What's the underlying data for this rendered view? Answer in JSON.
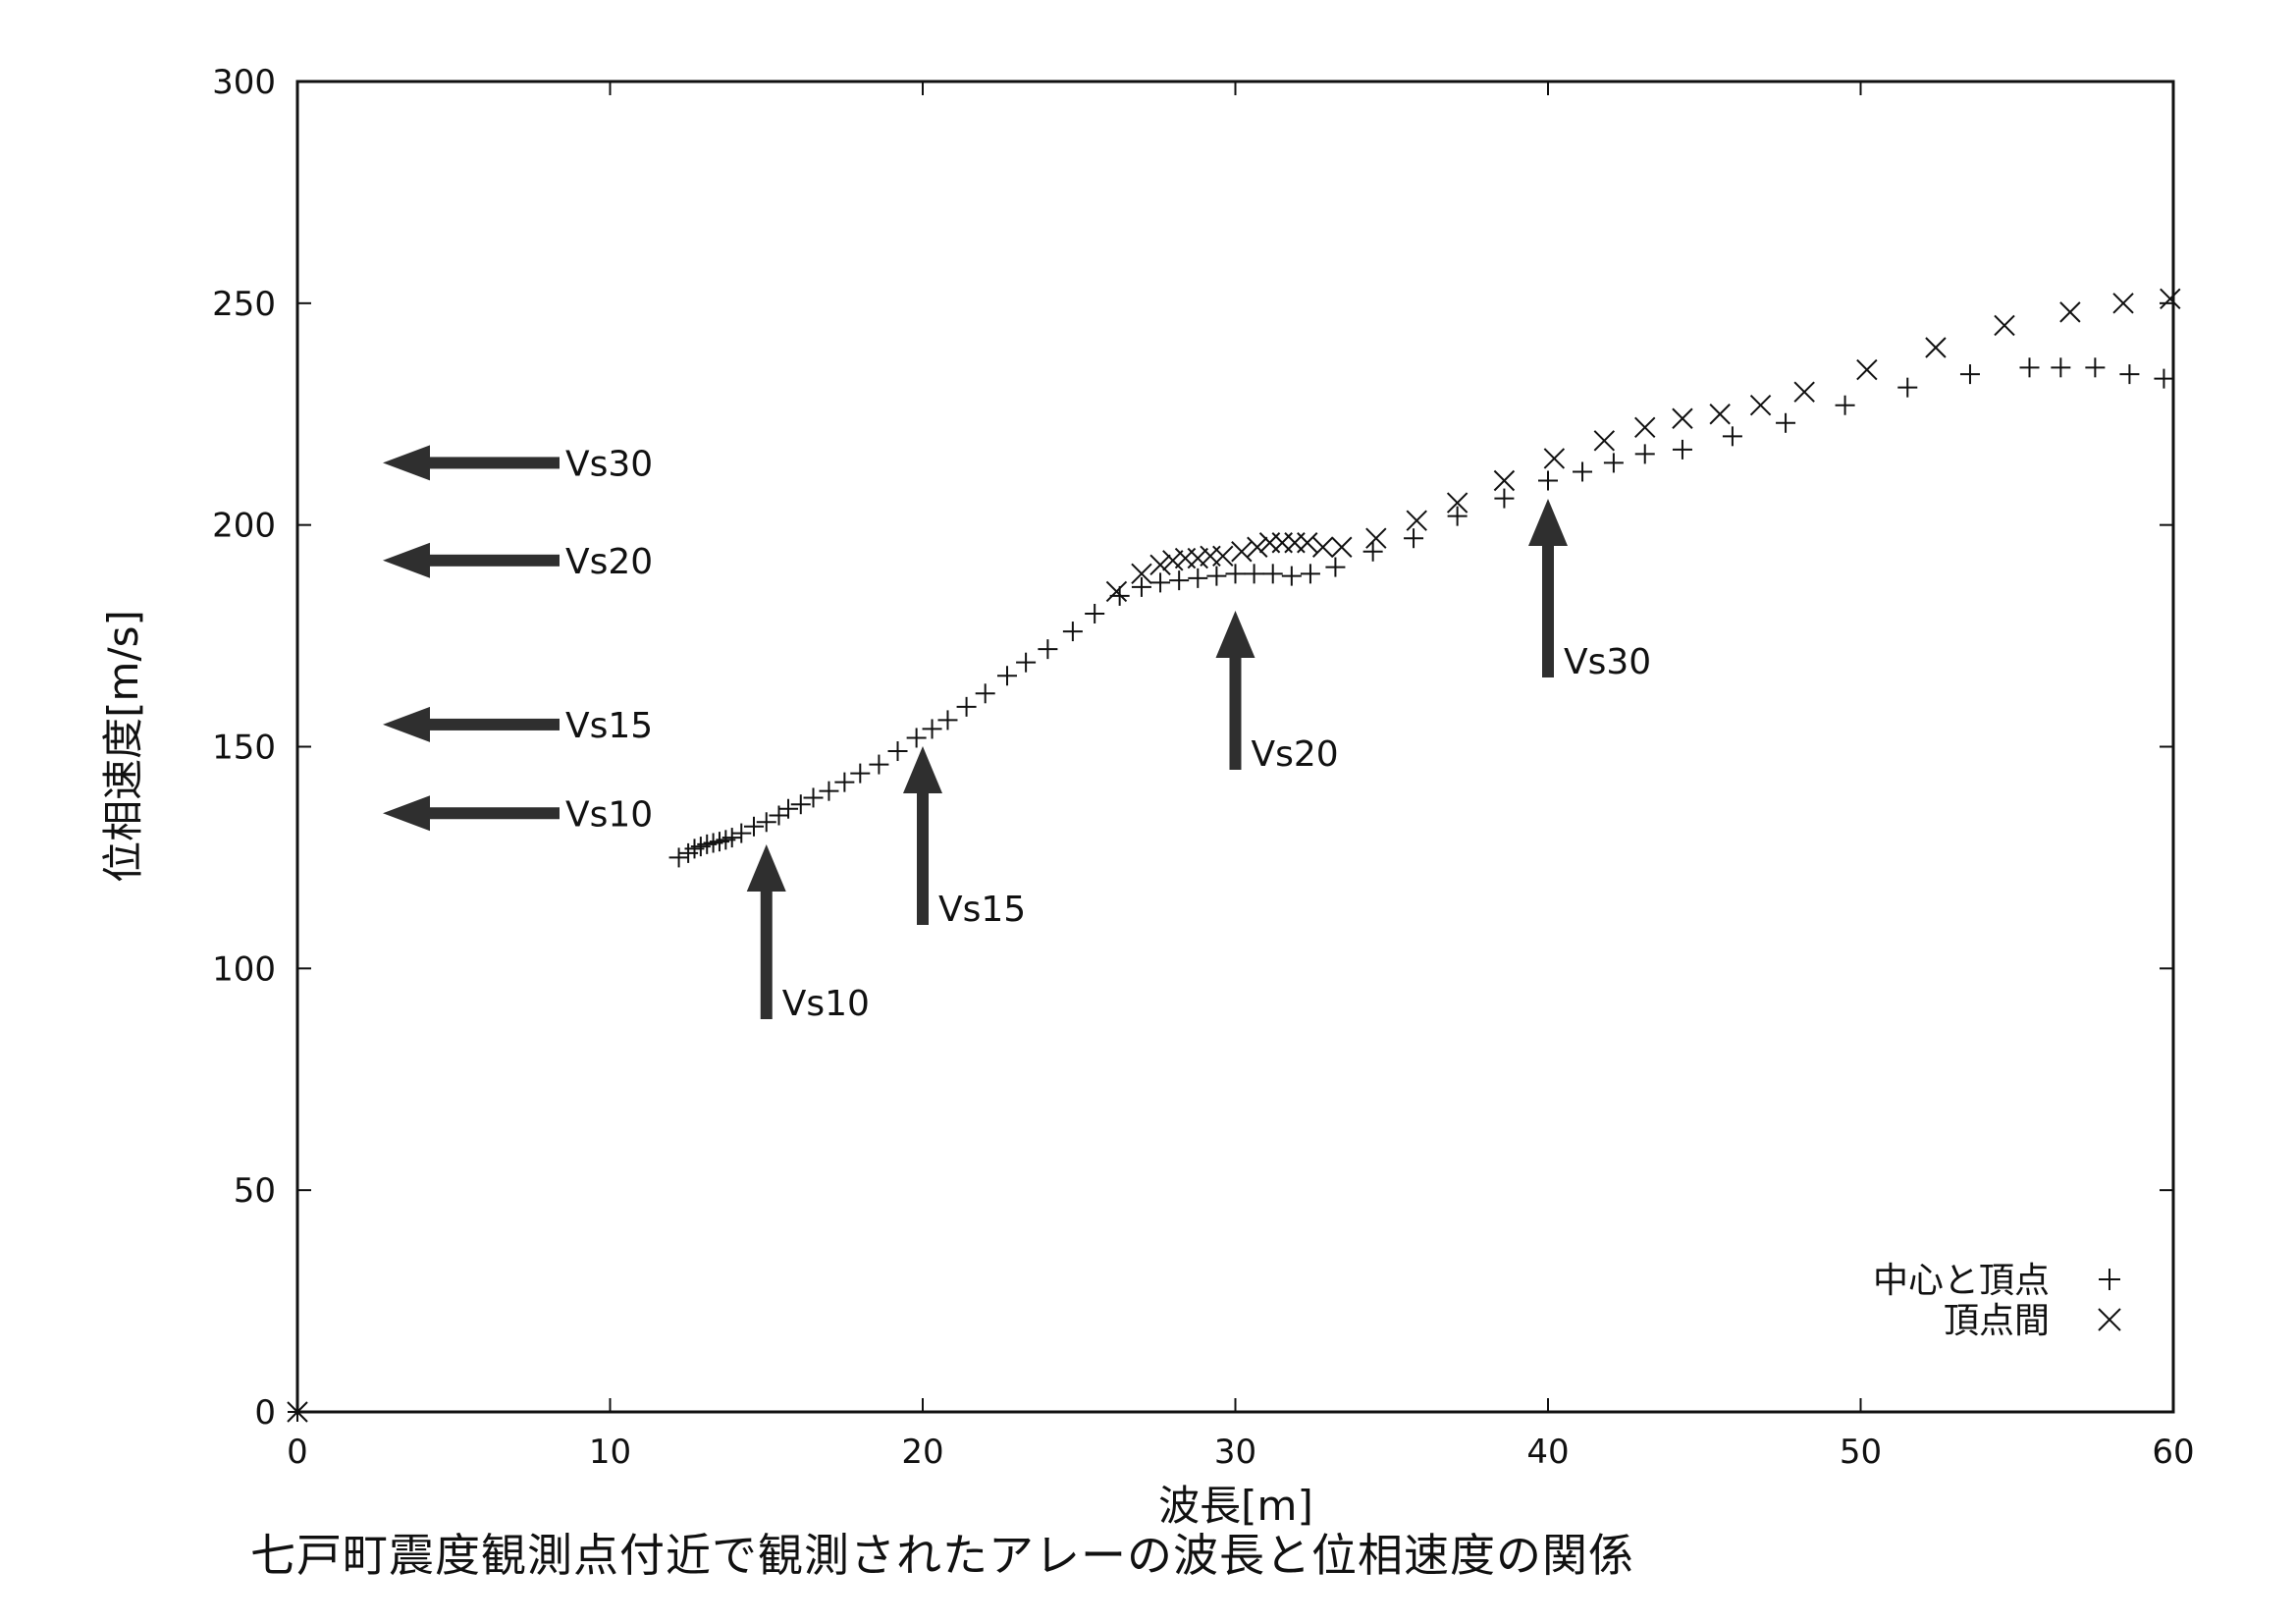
{
  "caption": "七戸町震度観測点付近で観測されたアレーの波長と位相速度の関係",
  "chart_data": {
    "type": "scatter",
    "xlabel": "波長[m]",
    "ylabel": "位相速度[m/s]",
    "xlim": [
      0,
      60
    ],
    "ylim": [
      0,
      300
    ],
    "xticks": [
      0,
      10,
      20,
      30,
      40,
      50,
      60
    ],
    "yticks": [
      0,
      50,
      100,
      150,
      200,
      250,
      300
    ],
    "grid": false,
    "legend_position": "bottom-right",
    "series": [
      {
        "name": "中心と頂点",
        "marker": "+",
        "points": [
          [
            0,
            0
          ],
          [
            12.2,
            125
          ],
          [
            12.5,
            126
          ],
          [
            12.7,
            127
          ],
          [
            12.9,
            127.5
          ],
          [
            13.1,
            128
          ],
          [
            13.3,
            128.3
          ],
          [
            13.5,
            128.6
          ],
          [
            13.7,
            129
          ],
          [
            13.9,
            129.5
          ],
          [
            14.2,
            130.5
          ],
          [
            14.6,
            132
          ],
          [
            15,
            133
          ],
          [
            15.4,
            134.5
          ],
          [
            15.7,
            136
          ],
          [
            16.1,
            137
          ],
          [
            16.5,
            138.5
          ],
          [
            17,
            140
          ],
          [
            17.5,
            142
          ],
          [
            18,
            144
          ],
          [
            18.6,
            146
          ],
          [
            19.2,
            149
          ],
          [
            19.8,
            152
          ],
          [
            20.3,
            154
          ],
          [
            20.8,
            156
          ],
          [
            21.4,
            159
          ],
          [
            22,
            162
          ],
          [
            22.7,
            166
          ],
          [
            23.3,
            169
          ],
          [
            24,
            172
          ],
          [
            24.8,
            176
          ],
          [
            25.5,
            180
          ],
          [
            26.3,
            184
          ],
          [
            27,
            186
          ],
          [
            27.6,
            187
          ],
          [
            28.2,
            187.5
          ],
          [
            28.8,
            188
          ],
          [
            29.4,
            188.5
          ],
          [
            30,
            189
          ],
          [
            30.6,
            189
          ],
          [
            31.2,
            189
          ],
          [
            31.8,
            188.5
          ],
          [
            32.4,
            189
          ],
          [
            33.2,
            190.5
          ],
          [
            34.4,
            194
          ],
          [
            35.7,
            197
          ],
          [
            37.1,
            202
          ],
          [
            38.6,
            206
          ],
          [
            40,
            210
          ],
          [
            41.1,
            212
          ],
          [
            42.1,
            214
          ],
          [
            43.1,
            216
          ],
          [
            44.3,
            217
          ],
          [
            45.9,
            220
          ],
          [
            47.6,
            223
          ],
          [
            49.5,
            227
          ],
          [
            51.5,
            231
          ],
          [
            53.5,
            234
          ],
          [
            55.4,
            235.5
          ],
          [
            56.4,
            235.5
          ],
          [
            57.5,
            235.5
          ],
          [
            58.6,
            234
          ],
          [
            59.7,
            233
          ]
        ]
      },
      {
        "name": "頂点間",
        "marker": "x",
        "points": [
          [
            0,
            0
          ],
          [
            26.2,
            185
          ],
          [
            27,
            189
          ],
          [
            27.6,
            191
          ],
          [
            28,
            192
          ],
          [
            28.4,
            192.5
          ],
          [
            28.8,
            192.5
          ],
          [
            29.2,
            193
          ],
          [
            29.6,
            193
          ],
          [
            30.2,
            194
          ],
          [
            30.7,
            195
          ],
          [
            31.1,
            196
          ],
          [
            31.5,
            196
          ],
          [
            31.9,
            196
          ],
          [
            32.3,
            196
          ],
          [
            32.8,
            195
          ],
          [
            33.4,
            195
          ],
          [
            34.5,
            197
          ],
          [
            35.8,
            201
          ],
          [
            37.1,
            205
          ],
          [
            38.6,
            210
          ],
          [
            40.2,
            215
          ],
          [
            41.8,
            219
          ],
          [
            43.1,
            222
          ],
          [
            44.3,
            224
          ],
          [
            45.5,
            225
          ],
          [
            46.8,
            227
          ],
          [
            48.2,
            230
          ],
          [
            50.2,
            235
          ],
          [
            52.4,
            240
          ],
          [
            54.6,
            245
          ],
          [
            56.7,
            248
          ],
          [
            58.4,
            250
          ],
          [
            59.9,
            251
          ]
        ]
      }
    ],
    "annotations": [
      {
        "label": "Vs30",
        "direction": "left",
        "value": 214
      },
      {
        "label": "Vs20",
        "direction": "left",
        "value": 192
      },
      {
        "label": "Vs15",
        "direction": "left",
        "value": 155
      },
      {
        "label": "Vs10",
        "direction": "left",
        "value": 135
      },
      {
        "label": "Vs10",
        "direction": "up",
        "value": 15
      },
      {
        "label": "Vs15",
        "direction": "up",
        "value": 20
      },
      {
        "label": "Vs20",
        "direction": "up",
        "value": 30
      },
      {
        "label": "Vs30",
        "direction": "up",
        "value": 40
      }
    ]
  }
}
